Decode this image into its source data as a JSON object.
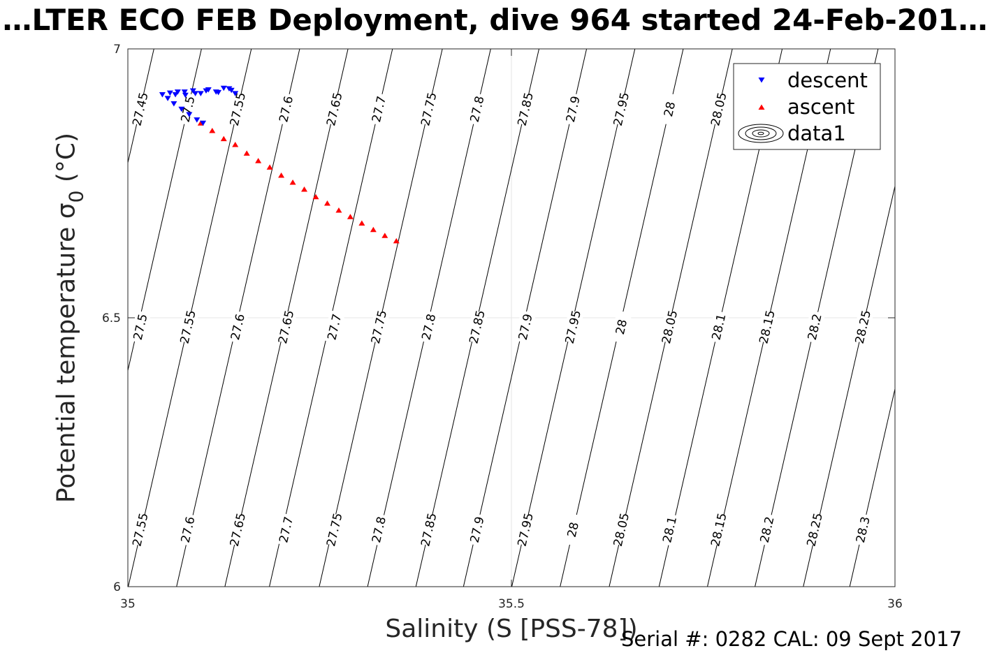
{
  "title": "…LTER ECO FEB Deployment, dive 964 started 24-Feb-201…",
  "footer": "Serial #: 0282  CAL: 09 Sept 2017",
  "colors": {
    "descent": "#0000ff",
    "ascent": "#ff0000",
    "contour": "#000000",
    "grid": "#e6e6e6"
  },
  "chart_data": {
    "type": "scatter",
    "title": "…LTER ECO FEB Deployment, dive 964 started 24-Feb-201…",
    "xlabel": "Salinity (S [PSS-78])",
    "ylabel_main": "Potential temperature ",
    "ylabel_sym": "σ",
    "ylabel_sub": "0",
    "ylabel_unit": " (°C)",
    "xlim": [
      35,
      36
    ],
    "ylim": [
      6,
      7
    ],
    "xticks": [
      35,
      35.5,
      36
    ],
    "xtick_labels": [
      "35",
      "35.5",
      "36"
    ],
    "yticks": [
      6,
      6.5,
      7
    ],
    "ytick_labels": [
      "6",
      "6.5",
      "7"
    ],
    "grid": true,
    "legend_position": "top-right",
    "legend": [
      "descent",
      "ascent",
      "data1"
    ],
    "series": [
      {
        "name": "descent",
        "marker": "triangle-down",
        "x": [
          35.045,
          35.055,
          35.065,
          35.075,
          35.085,
          35.095,
          35.105,
          35.115,
          35.125,
          35.135,
          35.14,
          35.132,
          35.118,
          35.102,
          35.088,
          35.074,
          35.062,
          35.052,
          35.06,
          35.07,
          35.08,
          35.09,
          35.098
        ],
        "y": [
          6.915,
          6.918,
          6.92,
          6.914,
          6.922,
          6.917,
          6.924,
          6.92,
          6.927,
          6.923,
          6.917,
          6.926,
          6.919,
          6.922,
          6.917,
          6.92,
          6.915,
          6.908,
          6.898,
          6.888,
          6.878,
          6.868,
          6.862
        ]
      },
      {
        "name": "ascent",
        "marker": "triangle-up",
        "x": [
          35.095,
          35.11,
          35.125,
          35.14,
          35.155,
          35.17,
          35.185,
          35.2,
          35.215,
          35.23,
          35.245,
          35.26,
          35.275,
          35.29,
          35.305,
          35.32,
          35.335,
          35.35
        ],
        "y": [
          6.862,
          6.848,
          6.833,
          6.822,
          6.806,
          6.792,
          6.78,
          6.765,
          6.752,
          6.739,
          6.725,
          6.713,
          6.7,
          6.688,
          6.676,
          6.664,
          6.653,
          6.643
        ]
      }
    ],
    "contours": [
      {
        "sigma": "27.45",
        "labels": [
          [
            35.016,
            6.888
          ]
        ]
      },
      {
        "sigma": "27.5",
        "labels": [
          [
            35.078,
            6.888
          ],
          [
            35.016,
            6.483
          ]
        ]
      },
      {
        "sigma": "27.55",
        "labels": [
          [
            35.143,
            6.888
          ],
          [
            35.078,
            6.483
          ],
          [
            35.016,
            6.106
          ]
        ]
      },
      {
        "sigma": "27.6",
        "labels": [
          [
            35.206,
            6.888
          ],
          [
            35.143,
            6.483
          ],
          [
            35.078,
            6.106
          ]
        ]
      },
      {
        "sigma": "27.65",
        "labels": [
          [
            35.269,
            6.888
          ],
          [
            35.206,
            6.483
          ],
          [
            35.143,
            6.106
          ]
        ]
      },
      {
        "sigma": "27.7",
        "labels": [
          [
            35.327,
            6.888
          ],
          [
            35.269,
            6.483
          ],
          [
            35.206,
            6.106
          ]
        ]
      },
      {
        "sigma": "27.75",
        "labels": [
          [
            35.392,
            6.888
          ],
          [
            35.327,
            6.483
          ],
          [
            35.269,
            6.106
          ]
        ]
      },
      {
        "sigma": "27.8",
        "labels": [
          [
            35.455,
            6.888
          ],
          [
            35.392,
            6.483
          ],
          [
            35.327,
            6.106
          ]
        ]
      },
      {
        "sigma": "27.85",
        "labels": [
          [
            35.518,
            6.888
          ],
          [
            35.455,
            6.483
          ],
          [
            35.392,
            6.106
          ]
        ]
      },
      {
        "sigma": "27.9",
        "labels": [
          [
            35.58,
            6.888
          ],
          [
            35.518,
            6.483
          ],
          [
            35.455,
            6.106
          ]
        ]
      },
      {
        "sigma": "27.95",
        "labels": [
          [
            35.643,
            6.888
          ],
          [
            35.58,
            6.483
          ],
          [
            35.518,
            6.106
          ]
        ]
      },
      {
        "sigma": "28",
        "labels": [
          [
            35.706,
            6.888
          ],
          [
            35.643,
            6.483
          ],
          [
            35.58,
            6.106
          ]
        ]
      },
      {
        "sigma": "28.05",
        "labels": [
          [
            35.77,
            6.888
          ],
          [
            35.706,
            6.483
          ],
          [
            35.643,
            6.106
          ]
        ]
      },
      {
        "sigma": "28.1",
        "labels": [
          [
            35.77,
            6.483
          ],
          [
            35.706,
            6.106
          ]
        ]
      },
      {
        "sigma": "28.15",
        "labels": [
          [
            35.833,
            6.483
          ],
          [
            35.77,
            6.106
          ]
        ]
      },
      {
        "sigma": "28.2",
        "labels": [
          [
            35.895,
            6.483
          ],
          [
            35.833,
            6.106
          ]
        ]
      },
      {
        "sigma": "28.25",
        "labels": [
          [
            35.958,
            6.483
          ],
          [
            35.895,
            6.106
          ]
        ]
      },
      {
        "sigma": "28.3",
        "labels": [
          [
            35.958,
            6.106
          ]
        ]
      }
    ]
  }
}
